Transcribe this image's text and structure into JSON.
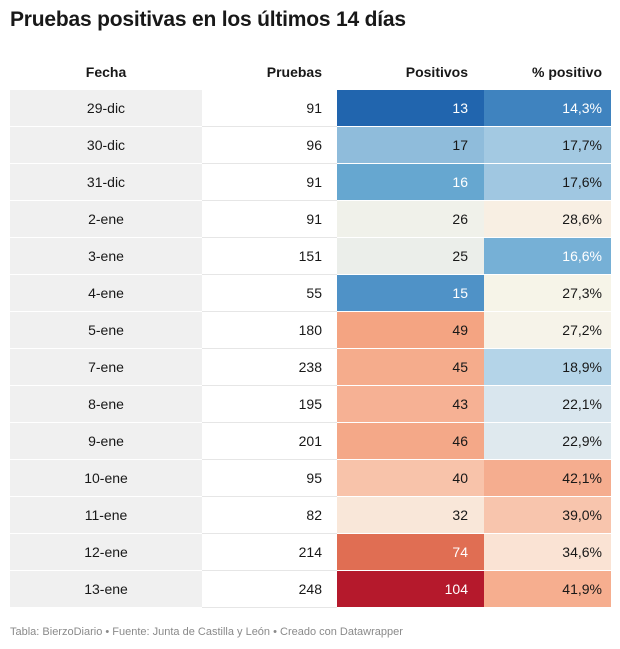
{
  "title": "Pruebas positivas en los últimos 14 días",
  "footer": "Tabla: BierzoDiario • Fuente: Junta de Castilla y León • Creado con Datawrapper",
  "chart_data": {
    "type": "table",
    "columns": [
      "Fecha",
      "Pruebas",
      "Positivos",
      "% positivo"
    ],
    "rows": [
      {
        "fecha": "29-dic",
        "pruebas": 91,
        "positivos": 13,
        "pct": "14,3%",
        "pos_bg": "#2165ae",
        "pct_bg": "#3f83bf"
      },
      {
        "fecha": "30-dic",
        "pruebas": 96,
        "positivos": 17,
        "pct": "17,7%",
        "pos_bg": "#8fbcdb",
        "pct_bg": "#a3c9e2"
      },
      {
        "fecha": "31-dic",
        "pruebas": 91,
        "positivos": 16,
        "pct": "17,6%",
        "pos_bg": "#66a7d0",
        "pct_bg": "#a0c7e1"
      },
      {
        "fecha": "2-ene",
        "pruebas": 91,
        "positivos": 26,
        "pct": "28,6%",
        "pos_bg": "#f0f1ea",
        "pct_bg": "#f8efe3"
      },
      {
        "fecha": "3-ene",
        "pruebas": 151,
        "positivos": 25,
        "pct": "16,6%",
        "pos_bg": "#ebeeea",
        "pct_bg": "#76b0d6"
      },
      {
        "fecha": "4-ene",
        "pruebas": 55,
        "positivos": 15,
        "pct": "27,3%",
        "pos_bg": "#4f92c7",
        "pct_bg": "#f6f4e8"
      },
      {
        "fecha": "5-ene",
        "pruebas": 180,
        "positivos": 49,
        "pct": "27,2%",
        "pos_bg": "#f4a482",
        "pct_bg": "#f6f3e9"
      },
      {
        "fecha": "7-ene",
        "pruebas": 238,
        "positivos": 45,
        "pct": "18,9%",
        "pos_bg": "#f5ac8c",
        "pct_bg": "#b4d4e8"
      },
      {
        "fecha": "8-ene",
        "pruebas": 195,
        "positivos": 43,
        "pct": "22,1%",
        "pos_bg": "#f6b194",
        "pct_bg": "#d9e6ee"
      },
      {
        "fecha": "9-ene",
        "pruebas": 201,
        "positivos": 46,
        "pct": "22,9%",
        "pos_bg": "#f4a888",
        "pct_bg": "#dfe9ee"
      },
      {
        "fecha": "10-ene",
        "pruebas": 95,
        "positivos": 40,
        "pct": "42,1%",
        "pos_bg": "#f8c3aa",
        "pct_bg": "#f5ad8f"
      },
      {
        "fecha": "11-ene",
        "pruebas": 82,
        "positivos": 32,
        "pct": "39,0%",
        "pos_bg": "#f9e7d9",
        "pct_bg": "#f8c5ad"
      },
      {
        "fecha": "12-ene",
        "pruebas": 214,
        "positivos": 74,
        "pct": "34,6%",
        "pos_bg": "#e06e53",
        "pct_bg": "#fae3d4"
      },
      {
        "fecha": "13-ene",
        "pruebas": 248,
        "positivos": 104,
        "pct": "41,9%",
        "pos_bg": "#b5192c",
        "pct_bg": "#f6ae8f"
      }
    ],
    "dark_text_color": "#181818",
    "light_text_color": "#ffffff",
    "light_text_cells": {
      "positivos": [
        "29-dic",
        "31-dic",
        "4-ene",
        "12-ene",
        "13-ene"
      ],
      "pct": [
        "29-dic",
        "3-ene"
      ]
    }
  }
}
